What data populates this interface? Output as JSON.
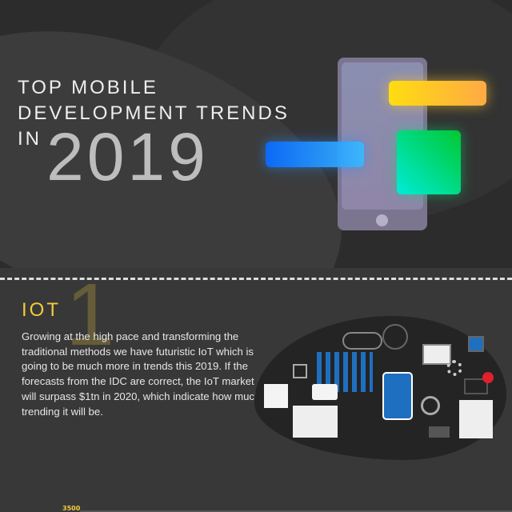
{
  "hero": {
    "title_line1": "TOP MOBILE",
    "title_line2": "DEVELOPMENT TRENDS",
    "title_line3": "IN",
    "year": "2019",
    "colors": {
      "yellow_bar": "#ffcc22",
      "blue_bar": "#2a8cff",
      "green_tile": "#10d888",
      "phone": "#7b7590"
    }
  },
  "section1": {
    "number": "1",
    "heading": "IOT",
    "body": "Growing at the high pace and transforming the traditional methods we have futuristic IoT which is going to be much more in trends this 2019. If the forecasts from the IDC are correct, the IoT market will surpass $1tn in 2020, which indicate how much trending it will be.",
    "accent": "#f2cc3d",
    "illustration": [
      "cloud-icon",
      "chip-icon",
      "bar-chart-icon",
      "user-icon",
      "chat-icon",
      "calendar-icon",
      "phone-in-hand-icon",
      "gauge-icon",
      "gear-icon",
      "envelope-icon",
      "clipboard-checklist-icon",
      "coffee-cup-icon",
      "box-icon"
    ]
  },
  "next_chart": {
    "tick_label": "3500"
  }
}
